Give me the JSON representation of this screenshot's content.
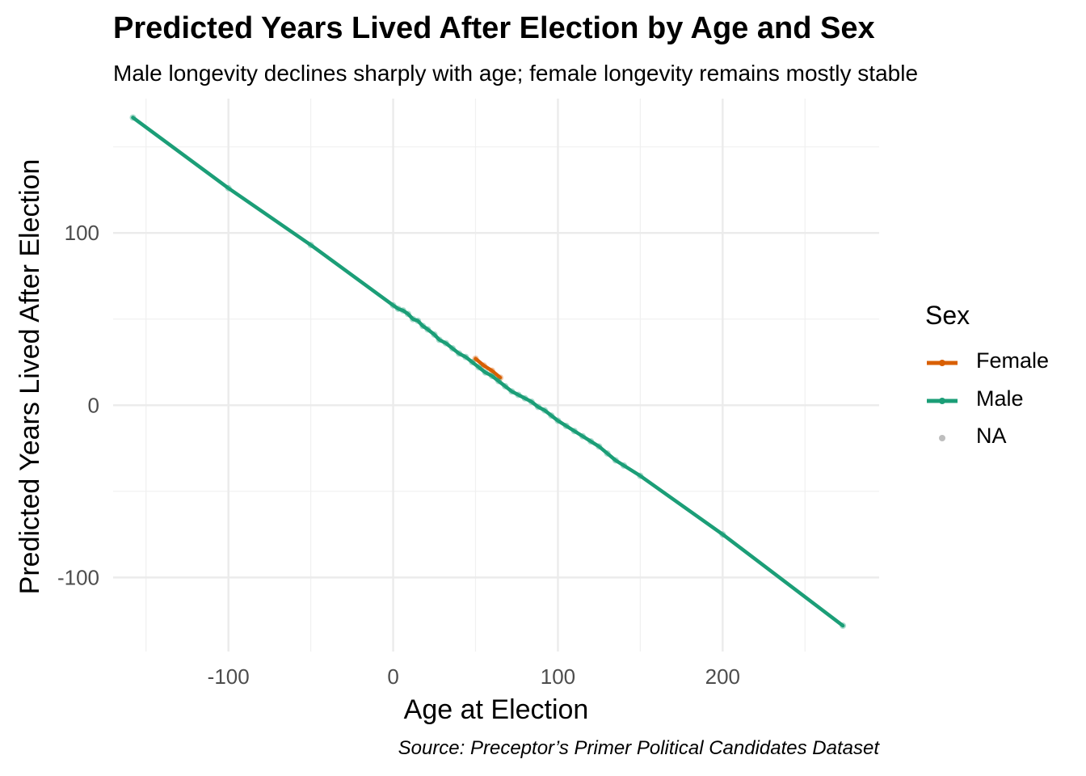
{
  "chart_data": {
    "type": "line",
    "title": "Predicted Years Lived After Election by Age and Sex",
    "subtitle": "Male longevity declines sharply with age; female longevity remains mostly stable",
    "xlabel": "Age at Election",
    "ylabel": "Predicted Years Lived After Election",
    "caption": "Source: Preceptor’s Primer Political Candidates Dataset",
    "xlim": [
      -170,
      295
    ],
    "ylim": [
      -143,
      178
    ],
    "x_ticks": [
      -100,
      0,
      100,
      200
    ],
    "y_ticks": [
      -100,
      0,
      100
    ],
    "x_tick_labels": [
      "-100",
      "0",
      "100",
      "200"
    ],
    "y_tick_labels": [
      "-100",
      "0",
      "100"
    ],
    "grid": true,
    "legend": {
      "title": "Sex",
      "position": "right",
      "entries": [
        "Female",
        "Male",
        "NA"
      ]
    },
    "series": [
      {
        "name": "Female",
        "color": "#D95F02",
        "x": [
          50,
          55,
          60,
          65
        ],
        "y": [
          27,
          23,
          20,
          16
        ]
      },
      {
        "name": "Male",
        "color": "#1B9E77",
        "x": [
          -158,
          -100,
          -50,
          0,
          3,
          6,
          9,
          12,
          15,
          18,
          21,
          25,
          28,
          32,
          36,
          40,
          44,
          48,
          52,
          56,
          60,
          64,
          68,
          72,
          76,
          80,
          84,
          88,
          92,
          96,
          100,
          105,
          110,
          115,
          120,
          125,
          130,
          135,
          140,
          150,
          200,
          273
        ],
        "y": [
          167,
          126,
          93,
          58,
          56,
          55,
          53,
          50,
          49,
          46,
          44,
          41,
          38,
          36,
          33,
          30,
          28,
          25,
          22,
          19,
          17,
          14,
          11,
          8,
          6,
          4,
          2,
          -1,
          -3,
          -6,
          -9,
          -12,
          -15,
          -18,
          -21,
          -24,
          -28,
          -32,
          -35,
          -41,
          -75,
          -128
        ]
      }
    ],
    "na_color": "#BEBEBE"
  }
}
